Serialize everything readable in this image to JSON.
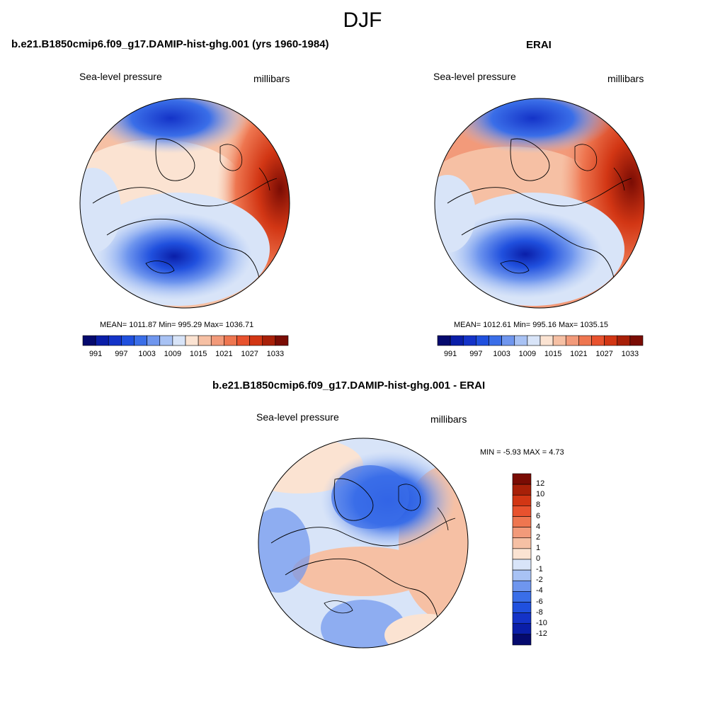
{
  "season": "DJF",
  "panels": [
    {
      "title": "b.e21.B1850cmip6.f09_g17.DAMIP-hist-ghg.001 (yrs 1960-1984)",
      "left_label": "Sea-level pressure",
      "right_label": "millibars",
      "stats": "MEAN= 1011.87  Min= 995.29  Max= 1036.71",
      "mean": 1011.87,
      "min": 995.29,
      "max": 1036.71
    },
    {
      "title": "ERAI",
      "left_label": "Sea-level pressure",
      "right_label": "millibars",
      "stats": "MEAN= 1012.61  Min= 995.16  Max= 1035.15",
      "mean": 1012.61,
      "min": 995.16,
      "max": 1035.15
    },
    {
      "title": "b.e21.B1850cmip6.f09_g17.DAMIP-hist-ghg.001 - ERAI",
      "left_label": "Sea-level pressure",
      "right_label": "millibars",
      "stats": "MIN =  -5.93 MAX =   4.73",
      "min": -5.93,
      "max": 4.73
    }
  ],
  "colorbar_abs": {
    "labels": [
      "991",
      "997",
      "1003",
      "1009",
      "1015",
      "1021",
      "1027",
      "1033"
    ],
    "colors": [
      "#050a6e",
      "#0a1ea8",
      "#1433c8",
      "#2050de",
      "#3a6ee8",
      "#6f96ee",
      "#a8c2f4",
      "#d8e4f8",
      "#fbe3d2",
      "#f6c0a4",
      "#f29a7a",
      "#ee7650",
      "#e8522e",
      "#d23614",
      "#a82008",
      "#7a0c04"
    ]
  },
  "colorbar_diff": {
    "labels": [
      "12",
      "10",
      "8",
      "6",
      "4",
      "2",
      "1",
      "0",
      "-1",
      "-2",
      "-4",
      "-6",
      "-8",
      "-10",
      "-12"
    ],
    "colors": [
      "#7a0c04",
      "#a82008",
      "#d23614",
      "#e8522e",
      "#ee7650",
      "#f29a7a",
      "#f6c0a4",
      "#fbe3d2",
      "#d8e4f8",
      "#a8c2f4",
      "#6f96ee",
      "#3a6ee8",
      "#2050de",
      "#1433c8",
      "#0a1ea8",
      "#050a6e"
    ]
  }
}
